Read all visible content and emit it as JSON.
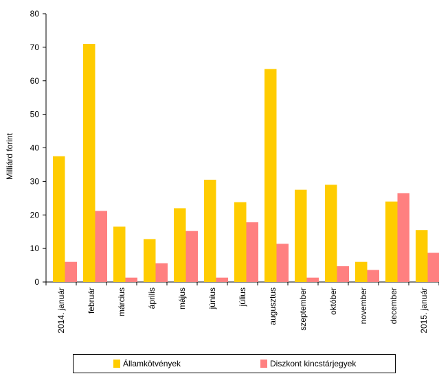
{
  "chart_data": {
    "type": "bar",
    "ylabel": "Milliárd forint",
    "xlabel": "",
    "ylim": [
      0,
      80
    ],
    "yticks": [
      0,
      10,
      20,
      30,
      40,
      50,
      60,
      70,
      80
    ],
    "grid": false,
    "legend_position": "bottom",
    "categories": [
      "2014. január",
      "február",
      "március",
      "április",
      "május",
      "június",
      "július",
      "augusztus",
      "szeptember",
      "október",
      "november",
      "december",
      "2015. január"
    ],
    "series": [
      {
        "name": "Államkötvények",
        "color": "#FFCC00",
        "values": [
          37.5,
          71,
          16.5,
          12.8,
          22,
          30.5,
          23.8,
          63.5,
          27.5,
          29,
          6,
          24,
          15.5
        ]
      },
      {
        "name": "Diszkont kincstárjegyek",
        "color": "#FF8080",
        "values": [
          6,
          21.2,
          1.3,
          5.6,
          15.2,
          1.3,
          17.8,
          11.4,
          1.3,
          4.7,
          3.6,
          26.5,
          8.7
        ]
      }
    ]
  }
}
